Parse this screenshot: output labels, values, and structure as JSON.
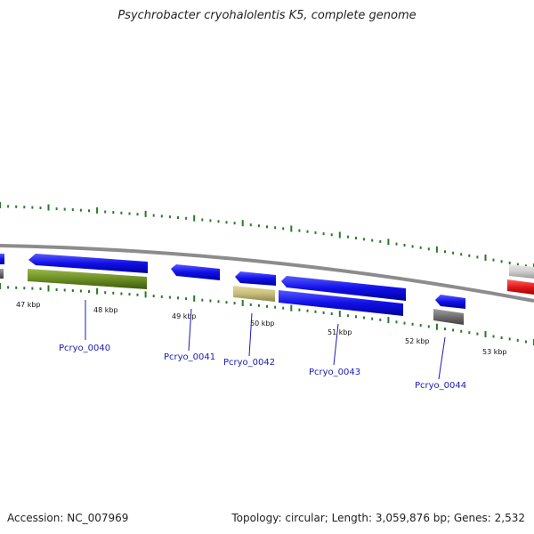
{
  "title": "Psychrobacter cryohalolentis K5, complete genome",
  "footer": {
    "accession": "Accession: NC_007969",
    "summary": "Topology: circular; Length: 3,059,876 bp; Genes: 2,532"
  },
  "kbp_labels": [
    "47 kbp",
    "48 kbp",
    "49 kbp",
    "50 kbp",
    "51 kbp",
    "52 kbp",
    "53 kbp"
  ],
  "genes": [
    {
      "label": "Pcryo_0040"
    },
    {
      "label": "Pcryo_0041"
    },
    {
      "label": "Pcryo_0042"
    },
    {
      "label": "Pcryo_0043"
    },
    {
      "label": "Pcryo_0044"
    }
  ],
  "colors": {
    "blue": "#1010e8",
    "olive": "#6b8e23",
    "khaki": "#c8bd7a",
    "gray": "#6e6e6e",
    "lightgray": "#cfcfcf",
    "red": "#e41a1a",
    "tick": "#2a7a2a",
    "backbone": "#8c8c8c",
    "label": "#1a1ab8"
  }
}
